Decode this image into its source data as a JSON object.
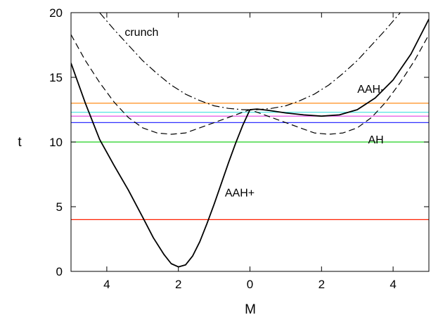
{
  "chart_data": {
    "type": "line",
    "xlabel": "M",
    "ylabel": "t",
    "xlim": [
      -5,
      5
    ],
    "ylim": [
      0,
      20
    ],
    "x_ticks": [
      -4,
      -2,
      0,
      2,
      4
    ],
    "x_tick_labels": [
      "4",
      "2",
      "0",
      "2",
      "4"
    ],
    "y_ticks": [
      0,
      5,
      10,
      15,
      20
    ],
    "y_tick_labels": [
      "0",
      "5",
      "10",
      "15",
      "20"
    ],
    "grid": false,
    "legend": "none",
    "annotations": [
      {
        "text": "crunch",
        "x": -3.5,
        "y": 18.2
      },
      {
        "text": "AAH-",
        "x": 3.0,
        "y": 13.8
      },
      {
        "text": "AH",
        "x": 3.3,
        "y": 9.9
      },
      {
        "text": "AAH+",
        "x": -0.7,
        "y": 5.8
      }
    ],
    "series": [
      {
        "style": "solid",
        "color": "#000000",
        "points": [
          [
            -5.0,
            16.1
          ],
          [
            -4.6,
            13.0
          ],
          [
            -4.2,
            10.2
          ],
          [
            -3.8,
            8.2
          ],
          [
            -3.4,
            6.3
          ],
          [
            -3.0,
            4.2
          ],
          [
            -2.7,
            2.6
          ],
          [
            -2.4,
            1.3
          ],
          [
            -2.2,
            0.6
          ],
          [
            -2.0,
            0.35
          ],
          [
            -1.8,
            0.5
          ],
          [
            -1.6,
            1.2
          ],
          [
            -1.4,
            2.3
          ],
          [
            -1.2,
            3.7
          ],
          [
            -1.0,
            5.2
          ],
          [
            -0.8,
            6.8
          ],
          [
            -0.6,
            8.4
          ],
          [
            -0.4,
            9.9
          ],
          [
            -0.2,
            11.3
          ],
          [
            0.0,
            12.5
          ],
          [
            0.2,
            12.55
          ],
          [
            0.5,
            12.45
          ],
          [
            1.0,
            12.25
          ],
          [
            1.5,
            12.1
          ],
          [
            2.0,
            12.0
          ],
          [
            2.5,
            12.1
          ],
          [
            3.0,
            12.5
          ],
          [
            3.5,
            13.4
          ],
          [
            4.0,
            14.8
          ],
          [
            4.5,
            16.8
          ],
          [
            5.0,
            19.5
          ]
        ]
      },
      {
        "style": "dashed",
        "color": "#000000",
        "points": [
          [
            -5.0,
            18.3
          ],
          [
            -4.6,
            16.3
          ],
          [
            -4.2,
            14.6
          ],
          [
            -3.8,
            13.1
          ],
          [
            -3.4,
            11.9
          ],
          [
            -3.0,
            11.1
          ],
          [
            -2.6,
            10.7
          ],
          [
            -2.2,
            10.6
          ],
          [
            -1.8,
            10.7
          ],
          [
            -1.4,
            11.1
          ],
          [
            -1.0,
            11.5
          ],
          [
            -0.6,
            11.9
          ],
          [
            -0.3,
            12.2
          ],
          [
            0.0,
            12.5
          ],
          [
            0.3,
            12.2
          ],
          [
            0.6,
            11.9
          ],
          [
            1.0,
            11.5
          ],
          [
            1.4,
            11.1
          ],
          [
            1.8,
            10.7
          ],
          [
            2.2,
            10.6
          ],
          [
            2.6,
            10.7
          ],
          [
            3.0,
            11.1
          ],
          [
            3.4,
            11.9
          ],
          [
            3.8,
            13.1
          ],
          [
            4.2,
            14.6
          ],
          [
            4.6,
            16.3
          ],
          [
            5.0,
            18.3
          ]
        ]
      },
      {
        "style": "dash-dot",
        "color": "#000000",
        "points": [
          [
            -4.2,
            20.0
          ],
          [
            -3.8,
            18.7
          ],
          [
            -3.4,
            17.5
          ],
          [
            -3.0,
            16.3
          ],
          [
            -2.6,
            15.3
          ],
          [
            -2.2,
            14.4
          ],
          [
            -1.8,
            13.7
          ],
          [
            -1.4,
            13.2
          ],
          [
            -1.0,
            12.8
          ],
          [
            -0.6,
            12.6
          ],
          [
            -0.2,
            12.5
          ],
          [
            0.0,
            12.5
          ],
          [
            0.2,
            12.5
          ],
          [
            0.6,
            12.6
          ],
          [
            1.0,
            12.8
          ],
          [
            1.4,
            13.2
          ],
          [
            1.8,
            13.7
          ],
          [
            2.2,
            14.4
          ],
          [
            2.6,
            15.3
          ],
          [
            3.0,
            16.3
          ],
          [
            3.4,
            17.5
          ],
          [
            3.8,
            18.7
          ],
          [
            4.2,
            20.0
          ]
        ]
      }
    ],
    "horizontal_lines": [
      {
        "y": 13.0,
        "color": "#ff8000"
      },
      {
        "y": 12.3,
        "color": "#40e0e0"
      },
      {
        "y": 12.0,
        "color": "#e040e0"
      },
      {
        "y": 11.5,
        "color": "#3030ff"
      },
      {
        "y": 10.0,
        "color": "#20d020"
      },
      {
        "y": 4.0,
        "color": "#ff2000"
      }
    ]
  }
}
